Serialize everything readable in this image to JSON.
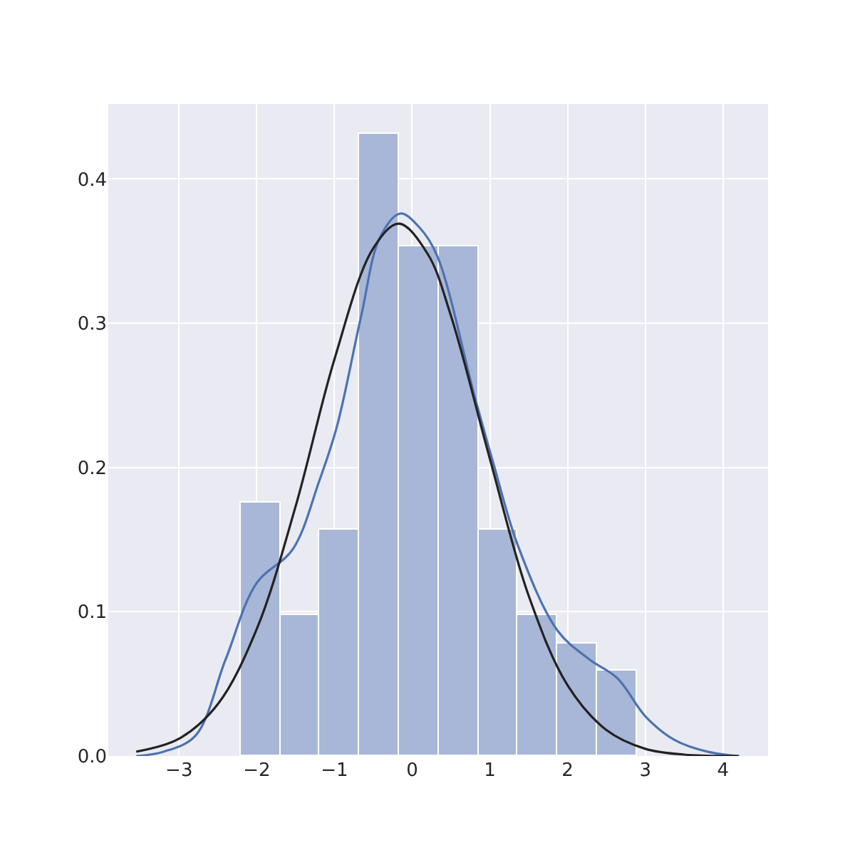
{
  "chart_data": {
    "type": "histogram",
    "bins": [
      -2.21,
      -1.7,
      -1.19,
      -0.68,
      -0.17,
      0.34,
      0.85,
      1.36,
      1.87,
      2.38,
      2.89
    ],
    "values": [
      0.176,
      0.098,
      0.157,
      0.431,
      0.353,
      0.353,
      0.157,
      0.098,
      0.078,
      0.059
    ],
    "color": "#a8b7d7",
    "series": [
      {
        "type": "line",
        "color": "#4c72b0",
        "x": [
          -3.55,
          -3.2,
          -2.79,
          -2.4,
          -2.0,
          -1.54,
          -1.2,
          -0.97,
          -0.66,
          -0.41,
          -0.15,
          0.1,
          0.32,
          0.81,
          1.05,
          1.36,
          1.87,
          2.28,
          2.64,
          3.01,
          3.38,
          3.8,
          4.21
        ],
        "values": [
          0.0,
          0.003,
          0.014,
          0.067,
          0.12,
          0.143,
          0.19,
          0.228,
          0.304,
          0.36,
          0.376,
          0.366,
          0.347,
          0.248,
          0.202,
          0.146,
          0.087,
          0.067,
          0.054,
          0.027,
          0.011,
          0.003,
          0.0
        ]
      },
      {
        "type": "line",
        "color": "#222222",
        "x": [
          -3.55,
          -3.0,
          -2.5,
          -2.0,
          -1.5,
          -1.0,
          -0.5,
          -0.17,
          0.2,
          0.5,
          1.0,
          1.5,
          2.0,
          2.5,
          3.0,
          3.5,
          4.2
        ],
        "values": [
          0.003,
          0.012,
          0.036,
          0.088,
          0.173,
          0.275,
          0.352,
          0.369,
          0.348,
          0.305,
          0.206,
          0.111,
          0.049,
          0.018,
          0.005,
          0.001,
          0.0
        ]
      }
    ],
    "xlim": [
      -3.91,
      4.58
    ],
    "ylim": [
      0,
      0.452
    ],
    "xticks": [
      {
        "value": -3,
        "label": "−3"
      },
      {
        "value": -2,
        "label": "−2"
      },
      {
        "value": -1,
        "label": "−1"
      },
      0,
      1,
      2,
      3,
      4
    ],
    "yticks": [
      {
        "value": 0,
        "label": "0.0"
      },
      0.1,
      0.2,
      0.3,
      0.4
    ],
    "grid": true
  }
}
